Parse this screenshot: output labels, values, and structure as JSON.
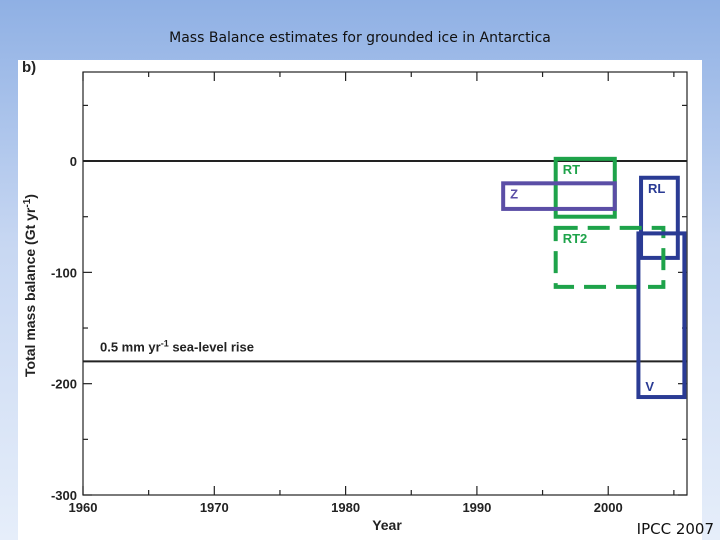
{
  "slide": {
    "title": "Mass Balance estimates for grounded ice in Antarctica",
    "credit": "IPCC 2007"
  },
  "chart_data": {
    "type": "bar",
    "panel_label": "b)",
    "xlabel": "Year",
    "ylabel": "Total mass balance (Gt yr",
    "ylabel_sup": "-1",
    "ylabel_end": ")",
    "xlim": [
      1960,
      2006
    ],
    "ylim": [
      -300,
      80
    ],
    "xticks": [
      1960,
      1970,
      1980,
      1990,
      2000
    ],
    "yticks": [
      0,
      -100,
      -200,
      -300
    ],
    "grid": false,
    "reference_lines": [
      {
        "y": 0
      },
      {
        "y": -180,
        "label": "0.5 mm yr",
        "label_sup": "-1",
        "label_end": " sea-level rise"
      }
    ],
    "boxes": [
      {
        "label": "RT",
        "x0": 1996,
        "x1": 2000.5,
        "y0": -50,
        "y1": 2,
        "color": "#1ea34a",
        "dashed": false
      },
      {
        "label": "Z",
        "x0": 1992,
        "x1": 2000.5,
        "y0": -43,
        "y1": -20,
        "color": "#5b4ea6",
        "dashed": false
      },
      {
        "label": "RL",
        "x0": 2002.5,
        "x1": 2005.3,
        "y0": -87,
        "y1": -15,
        "color": "#2a3b94",
        "dashed": false
      },
      {
        "label": "RT2",
        "x0": 1996,
        "x1": 2004.2,
        "y0": -113,
        "y1": -60,
        "color": "#1ea34a",
        "dashed": true
      },
      {
        "label": "V",
        "x0": 2002.3,
        "x1": 2005.8,
        "y0": -212,
        "y1": -65,
        "color": "#2a3b94",
        "dashed": false
      }
    ]
  }
}
